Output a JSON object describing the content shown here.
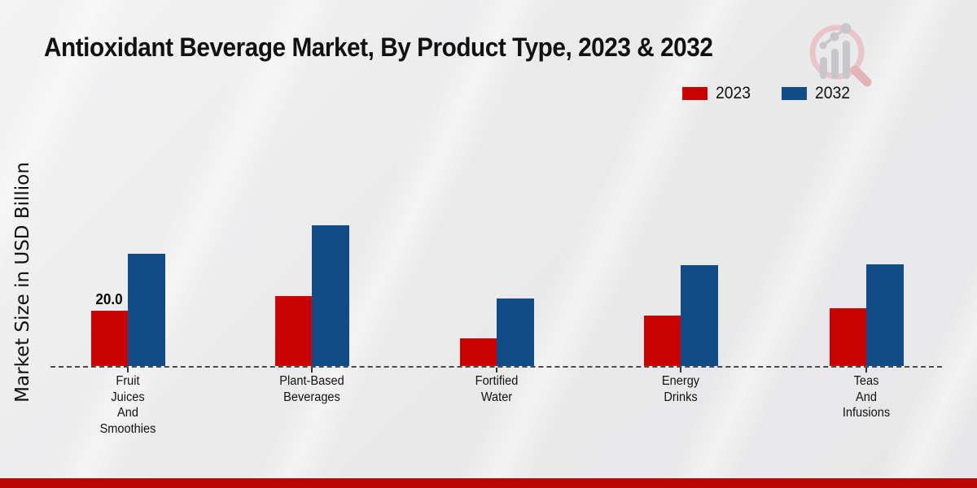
{
  "header": {
    "title": "Antioxidant Beverage Market, By Product Type, 2023 & 2032"
  },
  "logo": {
    "name": "magnifier-bar-chart-logo",
    "ring_color": "#e9c5c8",
    "handle_color": "#e3b3b6",
    "bars_color": "#c7c7cb"
  },
  "legend": {
    "items": [
      {
        "label": "2023",
        "color": "#c80202"
      },
      {
        "label": "2032",
        "color": "#114c86"
      }
    ]
  },
  "chart_data": {
    "type": "bar",
    "title": "Antioxidant Beverage Market, By Product Type, 2023 & 2032",
    "xlabel": "",
    "ylabel": "Market Size in USD Billion",
    "categories": [
      "Fruit Juices And Smoothies",
      "Plant-Based Beverages",
      "Fortified Water",
      "Energy Drinks",
      "Teas And Infusions"
    ],
    "category_label_lines": [
      "Fruit\nJuices\nAnd\nSmoothies",
      "Plant-Based\nBeverages",
      "Fortified\nWater",
      "Energy\nDrinks",
      "Teas\nAnd\nInfusions"
    ],
    "series": [
      {
        "name": "2023",
        "color": "#c80202",
        "values": [
          20.0,
          25.2,
          10.0,
          18.2,
          20.9
        ]
      },
      {
        "name": "2032",
        "color": "#114c86",
        "values": [
          40.6,
          50.9,
          24.4,
          36.5,
          36.8
        ]
      }
    ],
    "data_labels": [
      {
        "series": "2023",
        "category_index": 0,
        "text": "20.0"
      }
    ],
    "ylim": [
      0,
      55
    ],
    "grid": false,
    "legend_position": "top-right",
    "baseline_style": "dashed"
  },
  "footer": {
    "color": "#b90504"
  }
}
